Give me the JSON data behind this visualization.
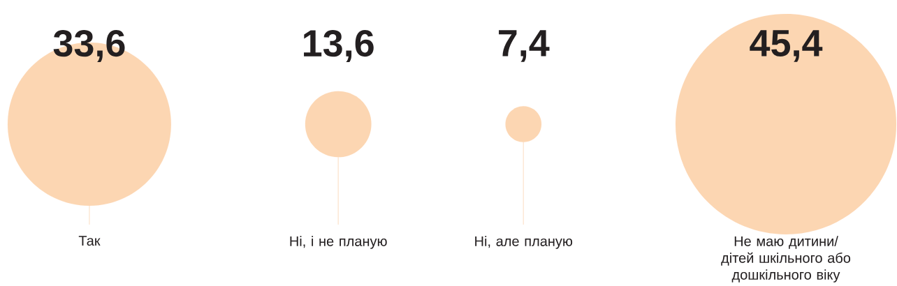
{
  "chart_data": {
    "type": "other",
    "categories": [
      "Так",
      "Ні, і не планую",
      "Ні, але планую",
      "Не маю дитини/ дітей шкільного або дошкільного віку"
    ],
    "values": [
      33.6,
      13.6,
      7.4,
      45.4
    ],
    "value_labels": [
      "33,6",
      "13,6",
      "7,4",
      "45,4"
    ],
    "color": "#fcd6b2"
  }
}
